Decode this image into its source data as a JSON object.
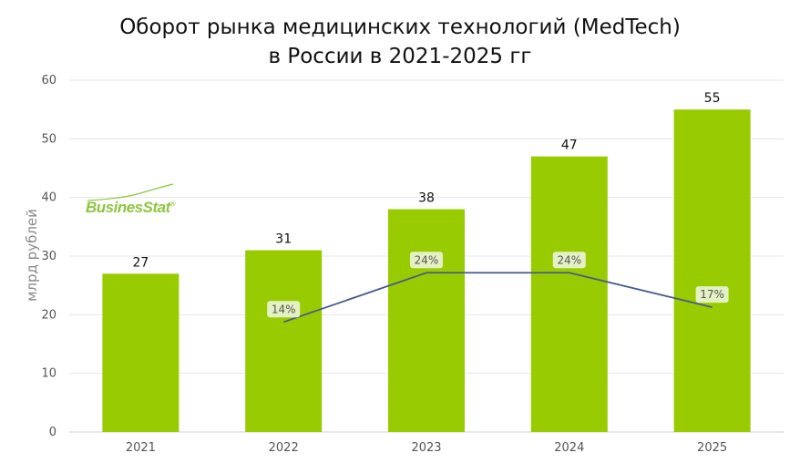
{
  "title": {
    "line1": "Оборот рынка медицинских технологий (MedTech)",
    "line2": "в России в 2021-2025 гг"
  },
  "logo": {
    "text": "BusinesStat",
    "mark": "®",
    "color": "#8cc63f"
  },
  "colors": {
    "bar": "#99cc00",
    "line": "#4a5a8c",
    "label_bg": "#e3f1c4",
    "grid": "#e6e6e6"
  },
  "chart_data": {
    "type": "bar",
    "categories": [
      "2021",
      "2022",
      "2023",
      "2024",
      "2025"
    ],
    "series": [
      {
        "values": [
          27,
          31,
          38,
          47,
          55
        ]
      },
      {
        "type": "line",
        "values": [
          null,
          14,
          24,
          24,
          17
        ],
        "labels": [
          "",
          "14%",
          "24%",
          "24%",
          "17%"
        ]
      }
    ],
    "ylabel": "млрд рублей",
    "ylim": [
      0,
      60
    ],
    "yticks": [
      0,
      10,
      20,
      30,
      40,
      50,
      60
    ],
    "grid": true
  }
}
